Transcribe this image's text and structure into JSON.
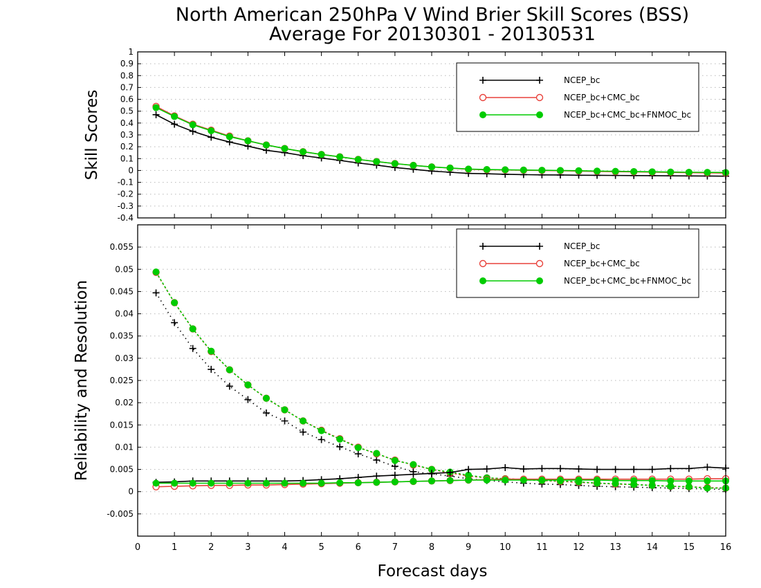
{
  "title": {
    "line1": "North American 250hPa V Wind Brier Skill Scores (BSS)",
    "line2": "Average For 20130301 - 20130531"
  },
  "xlabel": "Forecast days",
  "colors": {
    "ncep": "#000000",
    "cmc": "#e8413a",
    "fnmoc": "#00cc00"
  },
  "chart_data": [
    {
      "type": "line",
      "ylabel": "Skill Scores",
      "xlim": [
        0,
        16
      ],
      "ylim": [
        -0.4,
        1
      ],
      "x_ticks": [
        "0",
        "1",
        "2",
        "3",
        "4",
        "5",
        "6",
        "7",
        "8",
        "9",
        "10",
        "11",
        "12",
        "13",
        "14",
        "15",
        "16"
      ],
      "y_ticks": [
        "-0.4",
        "-0.3",
        "-0.2",
        "-0.1",
        "0",
        "0.1",
        "0.2",
        "0.3",
        "0.4",
        "0.5",
        "0.6",
        "0.7",
        "0.8",
        "0.9",
        "1"
      ],
      "grid": true,
      "legend_position": "top-right",
      "x": [
        0.5,
        1,
        1.5,
        2,
        2.5,
        3,
        3.5,
        4,
        4.5,
        5,
        5.5,
        6,
        6.5,
        7,
        7.5,
        8,
        8.5,
        9,
        9.5,
        10,
        10.5,
        11,
        11.5,
        12,
        12.5,
        13,
        13.5,
        14,
        14.5,
        15,
        15.5,
        16
      ],
      "series": [
        {
          "name": "NCEP_bc",
          "marker": "plus",
          "color": "#000000",
          "style": "solid",
          "values": [
            0.47,
            0.39,
            0.33,
            0.28,
            0.24,
            0.205,
            0.17,
            0.15,
            0.125,
            0.105,
            0.085,
            0.063,
            0.045,
            0.025,
            0.01,
            -0.005,
            -0.015,
            -0.025,
            -0.028,
            -0.032,
            -0.035,
            -0.037,
            -0.038,
            -0.04,
            -0.041,
            -0.042,
            -0.043,
            -0.044,
            -0.045,
            -0.046,
            -0.047,
            -0.048
          ]
        },
        {
          "name": "NCEP_bc+CMC_bc",
          "marker": "circle",
          "color": "#e8413a",
          "style": "solid",
          "values": [
            0.54,
            0.46,
            0.39,
            0.34,
            0.29,
            0.25,
            0.215,
            0.185,
            0.158,
            0.135,
            0.115,
            0.093,
            0.075,
            0.058,
            0.043,
            0.03,
            0.02,
            0.01,
            0.006,
            0.004,
            0.002,
            0.0,
            -0.002,
            -0.005,
            -0.008,
            -0.01,
            -0.012,
            -0.014,
            -0.016,
            -0.018,
            -0.02,
            -0.022
          ]
        },
        {
          "name": "NCEP_bc+CMC_bc+FNMOC_bc",
          "marker": "dot",
          "color": "#00cc00",
          "style": "solid",
          "values": [
            0.53,
            0.455,
            0.385,
            0.335,
            0.285,
            0.25,
            0.215,
            0.185,
            0.158,
            0.135,
            0.115,
            0.093,
            0.075,
            0.058,
            0.043,
            0.03,
            0.021,
            0.012,
            0.008,
            0.006,
            0.004,
            0.002,
            0.0,
            -0.002,
            -0.005,
            -0.007,
            -0.009,
            -0.011,
            -0.013,
            -0.015,
            -0.016,
            -0.017
          ]
        }
      ]
    },
    {
      "type": "line",
      "ylabel": "Reliability and Resolution",
      "xlim": [
        0,
        16
      ],
      "ylim": [
        -0.01,
        0.06
      ],
      "x_ticks": [
        "0",
        "1",
        "2",
        "3",
        "4",
        "5",
        "6",
        "7",
        "8",
        "9",
        "10",
        "11",
        "12",
        "13",
        "14",
        "15",
        "16"
      ],
      "y_ticks": [
        "-0.005",
        "0",
        "0.005",
        "0.01",
        "0.015",
        "0.02",
        "0.025",
        "0.03",
        "0.035",
        "0.04",
        "0.045",
        "0.05",
        "0.055"
      ],
      "grid": true,
      "legend_position": "top-right",
      "x": [
        0.5,
        1,
        1.5,
        2,
        2.5,
        3,
        3.5,
        4,
        4.5,
        5,
        5.5,
        6,
        6.5,
        7,
        7.5,
        8,
        8.5,
        9,
        9.5,
        10,
        10.5,
        11,
        11.5,
        12,
        12.5,
        13,
        13.5,
        14,
        14.5,
        15,
        15.5,
        16
      ],
      "series": [
        {
          "name": "NCEP_bc",
          "marker": "plus",
          "color": "#000000",
          "style": "dotted",
          "values": [
            0.0447,
            0.038,
            0.0322,
            0.0275,
            0.0237,
            0.0207,
            0.0177,
            0.0159,
            0.0134,
            0.0117,
            0.0101,
            0.0085,
            0.0071,
            0.0057,
            0.0045,
            0.004,
            0.0035,
            0.0029,
            0.0025,
            0.0022,
            0.0019,
            0.0017,
            0.0016,
            0.0014,
            0.0012,
            0.0011,
            0.001,
            0.0009,
            0.0008,
            0.0007,
            0.0006,
            0.0005
          ]
        },
        {
          "name": "NCEP_bc",
          "marker": "plus",
          "color": "#000000",
          "style": "solid",
          "values": [
            0.0021,
            0.0022,
            0.0024,
            0.0024,
            0.0024,
            0.0024,
            0.0024,
            0.0024,
            0.0025,
            0.0027,
            0.0029,
            0.0032,
            0.0035,
            0.0037,
            0.0039,
            0.0041,
            0.0043,
            0.005,
            0.0051,
            0.0054,
            0.0051,
            0.0052,
            0.0052,
            0.0051,
            0.005,
            0.005,
            0.005,
            0.005,
            0.0052,
            0.0052,
            0.0055,
            0.0053
          ]
        },
        {
          "name": "NCEP_bc+CMC_bc",
          "marker": "circle",
          "color": "#e8413a",
          "style": "dotted",
          "values": [
            0.0493,
            0.0425,
            0.0366,
            0.0315,
            0.0274,
            0.024,
            0.021,
            0.0184,
            0.0159,
            0.0138,
            0.0119,
            0.01,
            0.0085,
            0.0071,
            0.006,
            0.005,
            0.0042,
            0.0035,
            0.0031,
            0.0029,
            0.0027,
            0.0025,
            0.0023,
            0.0021,
            0.0019,
            0.0017,
            0.0016,
            0.0014,
            0.0012,
            0.0011,
            0.0009,
            0.0008
          ]
        },
        {
          "name": "NCEP_bc+CMC_bc",
          "marker": "circle",
          "color": "#e8413a",
          "style": "solid",
          "values": [
            0.0011,
            0.0012,
            0.0013,
            0.0014,
            0.0014,
            0.0015,
            0.0015,
            0.0016,
            0.0017,
            0.0018,
            0.0019,
            0.002,
            0.0021,
            0.0022,
            0.0023,
            0.0024,
            0.0025,
            0.0026,
            0.0027,
            0.0028,
            0.0028,
            0.0028,
            0.0028,
            0.0028,
            0.0028,
            0.0028,
            0.0028,
            0.0028,
            0.0028,
            0.0028,
            0.0029,
            0.0029
          ]
        },
        {
          "name": "NCEP_bc+CMC_bc+FNMOC_bc",
          "marker": "dot",
          "color": "#00cc00",
          "style": "dotted",
          "values": [
            0.0494,
            0.0425,
            0.0366,
            0.0316,
            0.0274,
            0.024,
            0.021,
            0.0184,
            0.0159,
            0.0137,
            0.0118,
            0.0099,
            0.0086,
            0.007,
            0.0061,
            0.005,
            0.0044,
            0.0037,
            0.0031,
            0.0029,
            0.0027,
            0.0025,
            0.0024,
            0.0022,
            0.0019,
            0.0018,
            0.0016,
            0.0014,
            0.0012,
            0.0011,
            0.0008,
            0.0008
          ]
        },
        {
          "name": "NCEP_bc+CMC_bc+FNMOC_bc",
          "marker": "dot",
          "color": "#00cc00",
          "style": "solid",
          "values": [
            0.0019,
            0.0019,
            0.0019,
            0.0019,
            0.0019,
            0.0019,
            0.0019,
            0.0019,
            0.0019,
            0.0019,
            0.002,
            0.002,
            0.0021,
            0.0022,
            0.0023,
            0.0024,
            0.0025,
            0.0026,
            0.0026,
            0.0026,
            0.0026,
            0.0026,
            0.0026,
            0.0026,
            0.0026,
            0.0025,
            0.0025,
            0.0025,
            0.0024,
            0.0024,
            0.0024,
            0.0024
          ]
        }
      ]
    }
  ],
  "legend": [
    {
      "name": "NCEP_bc",
      "marker": "plus",
      "color": "#000000"
    },
    {
      "name": "NCEP_bc+CMC_bc",
      "marker": "circle",
      "color": "#e8413a"
    },
    {
      "name": "NCEP_bc+CMC_bc+FNMOC_bc",
      "marker": "dot",
      "color": "#00cc00"
    }
  ]
}
